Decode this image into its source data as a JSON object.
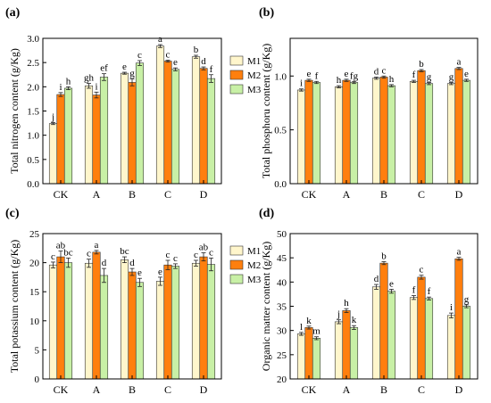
{
  "colors": {
    "M1": "#FFF6CC",
    "M2": "#FF7F0E",
    "M3": "#C8F0A6"
  },
  "chart_data": [
    {
      "type": "bar",
      "panel_label": "(a)",
      "ylabel": "Total nitrogen content (g/Kg)",
      "categories": [
        "CK",
        "A",
        "B",
        "C",
        "D"
      ],
      "ylim": [
        0,
        3.0
      ],
      "yticks": [
        "0.0",
        "0.5",
        "1.0",
        "1.5",
        "2.0",
        "2.5",
        "3.0"
      ],
      "legend": "right",
      "series": [
        {
          "name": "M1",
          "values": [
            1.24,
            2.02,
            2.28,
            2.84,
            2.62
          ],
          "errors": [
            0.02,
            0.05,
            0.02,
            0.03,
            0.03
          ],
          "letters": [
            "j",
            "gh",
            "e",
            "a",
            "b"
          ]
        },
        {
          "name": "M2",
          "values": [
            1.84,
            1.83,
            2.09,
            2.53,
            2.38
          ],
          "errors": [
            0.04,
            0.06,
            0.07,
            0.02,
            0.03
          ],
          "letters": [
            "i",
            "i",
            "g",
            "c",
            "d"
          ]
        },
        {
          "name": "M3",
          "values": [
            1.97,
            2.2,
            2.49,
            2.36,
            2.17
          ],
          "errors": [
            0.03,
            0.07,
            0.05,
            0.03,
            0.08
          ],
          "letters": [
            "h",
            "ef",
            "c",
            "e",
            "f"
          ]
        }
      ]
    },
    {
      "type": "bar",
      "panel_label": "(b)",
      "ylabel": "Total phosphoru content (g/Kg)",
      "categories": [
        "CK",
        "A",
        "B",
        "C",
        "D"
      ],
      "ylim": [
        0,
        1.35
      ],
      "yticks": [
        "0.0",
        "0.5",
        "1.0"
      ],
      "legend": "none",
      "series": [
        {
          "name": "M1",
          "values": [
            0.87,
            0.9,
            0.98,
            0.95,
            0.93
          ],
          "errors": [
            0.01,
            0.01,
            0.01,
            0.01,
            0.01
          ],
          "letters": [
            "i",
            "h",
            "d",
            "f",
            "g"
          ]
        },
        {
          "name": "M2",
          "values": [
            0.96,
            0.96,
            0.99,
            1.05,
            1.07
          ],
          "errors": [
            0.01,
            0.01,
            0.01,
            0.01,
            0.01
          ],
          "letters": [
            "e",
            "e",
            "c",
            "b",
            "a"
          ]
        },
        {
          "name": "M3",
          "values": [
            0.94,
            0.94,
            0.91,
            0.93,
            0.96
          ],
          "errors": [
            0.01,
            0.01,
            0.01,
            0.01,
            0.01
          ],
          "letters": [
            "f",
            "fg",
            "h",
            "g",
            "e"
          ]
        }
      ]
    },
    {
      "type": "bar",
      "panel_label": "(c)",
      "ylabel": "Total potassium content (g/Kg)",
      "categories": [
        "CK",
        "A",
        "B",
        "C",
        "D"
      ],
      "ylim": [
        0,
        25
      ],
      "yticks": [
        "0",
        "5",
        "10",
        "15",
        "20",
        "25"
      ],
      "legend": "right",
      "series": [
        {
          "name": "M1",
          "values": [
            19.6,
            19.9,
            20.5,
            16.8,
            19.9
          ],
          "errors": [
            0.5,
            0.7,
            0.5,
            0.7,
            0.5
          ],
          "letters": [
            "c",
            "c",
            "bc",
            "e",
            "c"
          ]
        },
        {
          "name": "M2",
          "values": [
            21.0,
            21.8,
            18.4,
            19.6,
            21.0
          ],
          "errors": [
            1.0,
            0.3,
            0.6,
            0.8,
            0.7
          ],
          "letters": [
            "ab",
            "a",
            "d",
            "c",
            "ab"
          ]
        },
        {
          "name": "M3",
          "values": [
            20.0,
            17.8,
            16.6,
            19.4,
            19.7
          ],
          "errors": [
            0.8,
            1.2,
            0.7,
            0.4,
            1.1
          ],
          "letters": [
            "bc",
            "d",
            "e",
            "c",
            "c"
          ]
        }
      ]
    },
    {
      "type": "bar",
      "panel_label": "(d)",
      "ylabel": "Organic matter content (g/Kg)",
      "categories": [
        "CK",
        "A",
        "B",
        "C",
        "D"
      ],
      "ylim": [
        20,
        50
      ],
      "yticks": [
        "20",
        "25",
        "30",
        "35",
        "40",
        "45",
        "50"
      ],
      "legend": "none",
      "series": [
        {
          "name": "M1",
          "values": [
            29.3,
            31.8,
            39.0,
            36.8,
            33.1
          ],
          "errors": [
            0.3,
            0.4,
            0.5,
            0.4,
            0.5
          ],
          "letters": [
            "l",
            "j",
            "d",
            "f",
            "i"
          ]
        },
        {
          "name": "M2",
          "values": [
            30.6,
            34.1,
            43.9,
            41.0,
            44.8
          ],
          "errors": [
            0.3,
            0.4,
            0.3,
            0.4,
            0.3
          ],
          "letters": [
            "k",
            "h",
            "b",
            "c",
            "a"
          ]
        },
        {
          "name": "M3",
          "values": [
            28.4,
            30.6,
            38.1,
            36.6,
            35.0
          ],
          "errors": [
            0.3,
            0.4,
            0.4,
            0.3,
            0.3
          ],
          "letters": [
            "m",
            "k",
            "e",
            "f",
            "g"
          ]
        }
      ]
    }
  ]
}
